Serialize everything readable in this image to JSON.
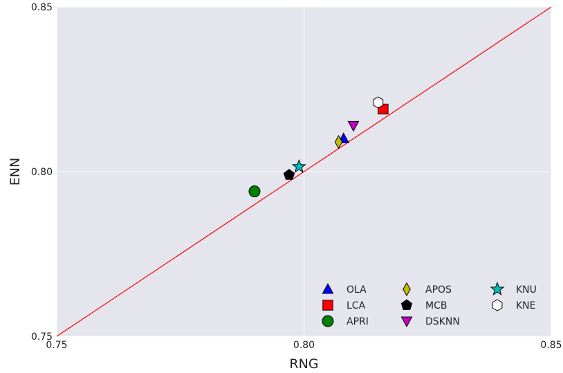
{
  "chart_data": {
    "type": "scatter",
    "title": "",
    "xlabel": "RNG",
    "ylabel": "ENN",
    "xlim": [
      0.75,
      0.85
    ],
    "ylim": [
      0.75,
      0.85
    ],
    "xticks": [
      "0.75",
      "0.80",
      "0.85"
    ],
    "yticks": [
      "0.75",
      "0.80",
      "0.85"
    ],
    "grid": true,
    "background": "#e5e5ee",
    "reference_line": {
      "type": "identity",
      "color": "#ff0000"
    },
    "legend_position": "lower-right",
    "series": [
      {
        "name": "OLA",
        "x": 0.808,
        "y": 0.81,
        "marker": "triangle-up",
        "color": "#0000ff"
      },
      {
        "name": "LCA",
        "x": 0.816,
        "y": 0.819,
        "marker": "square",
        "color": "#ff0000"
      },
      {
        "name": "APRI",
        "x": 0.79,
        "y": 0.794,
        "marker": "circle",
        "color": "#008000"
      },
      {
        "name": "APOS",
        "x": 0.807,
        "y": 0.809,
        "marker": "diamond",
        "color": "#bfbf00"
      },
      {
        "name": "MCB",
        "x": 0.797,
        "y": 0.799,
        "marker": "pentagon",
        "color": "#000000"
      },
      {
        "name": "DSKNN",
        "x": 0.81,
        "y": 0.814,
        "marker": "triangle-down",
        "color": "#bf00bf"
      },
      {
        "name": "KNU",
        "x": 0.799,
        "y": 0.8015,
        "marker": "star",
        "color": "#00bfbf"
      },
      {
        "name": "KNE",
        "x": 0.815,
        "y": 0.821,
        "marker": "hexagon",
        "color": "#ffffff"
      }
    ]
  }
}
